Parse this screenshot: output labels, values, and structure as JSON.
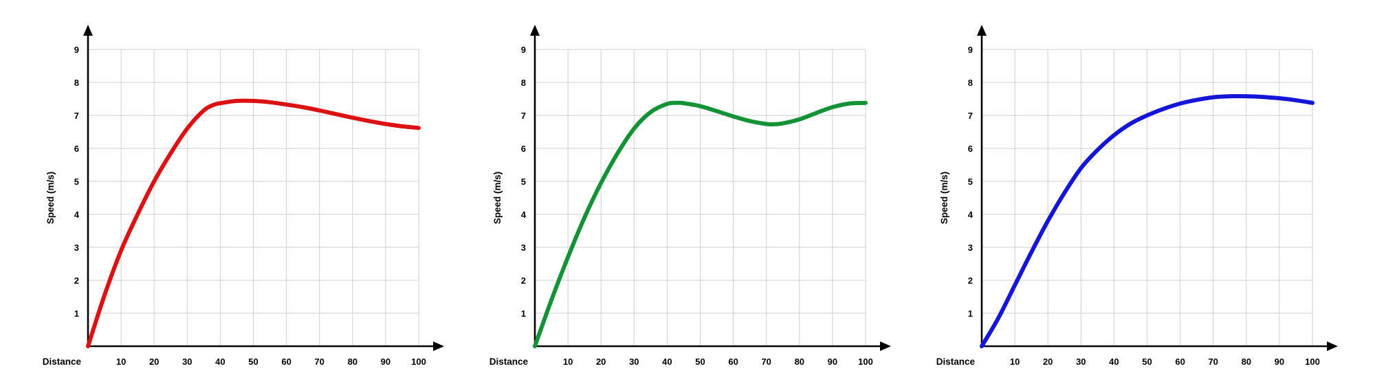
{
  "chart_data": [
    {
      "type": "line",
      "xlabel": "Distance",
      "ylabel": "Speed (m/s)",
      "xlim": [
        0,
        100
      ],
      "ylim": [
        0,
        9
      ],
      "x_ticks": [
        10,
        20,
        30,
        40,
        50,
        60,
        70,
        80,
        90,
        100
      ],
      "y_ticks": [
        1,
        2,
        3,
        4,
        5,
        6,
        7,
        8,
        9
      ],
      "grid": true,
      "series": [
        {
          "color": "#dd1111",
          "x": [
            0,
            5,
            10,
            15,
            20,
            25,
            30,
            35,
            38,
            40,
            45,
            50,
            55,
            60,
            65,
            70,
            75,
            80,
            85,
            90,
            95,
            100
          ],
          "y": [
            0,
            1.55,
            2.9,
            4.0,
            5.0,
            5.85,
            6.6,
            7.15,
            7.32,
            7.37,
            7.44,
            7.44,
            7.4,
            7.33,
            7.25,
            7.15,
            7.04,
            6.93,
            6.83,
            6.74,
            6.67,
            6.62
          ]
        }
      ]
    },
    {
      "type": "line",
      "xlabel": "Distance",
      "ylabel": "Speed (m/s)",
      "xlim": [
        0,
        100
      ],
      "ylim": [
        0,
        9
      ],
      "x_ticks": [
        10,
        20,
        30,
        40,
        50,
        60,
        70,
        80,
        90,
        100
      ],
      "y_ticks": [
        1,
        2,
        3,
        4,
        5,
        6,
        7,
        8,
        9
      ],
      "grid": true,
      "series": [
        {
          "color": "#149236",
          "x": [
            0,
            5,
            10,
            15,
            20,
            25,
            30,
            35,
            40,
            43,
            45,
            50,
            55,
            60,
            65,
            70,
            72,
            75,
            80,
            85,
            90,
            95,
            100
          ],
          "y": [
            0,
            1.4,
            2.7,
            3.9,
            4.95,
            5.85,
            6.6,
            7.1,
            7.35,
            7.38,
            7.37,
            7.28,
            7.13,
            6.97,
            6.83,
            6.74,
            6.73,
            6.76,
            6.88,
            7.07,
            7.25,
            7.36,
            7.38
          ]
        }
      ]
    },
    {
      "type": "line",
      "xlabel": "Distance",
      "ylabel": "Speed (m/s)",
      "xlim": [
        0,
        100
      ],
      "ylim": [
        0,
        9
      ],
      "x_ticks": [
        10,
        20,
        30,
        40,
        50,
        60,
        70,
        80,
        90,
        100
      ],
      "y_ticks": [
        1,
        2,
        3,
        4,
        5,
        6,
        7,
        8,
        9
      ],
      "grid": true,
      "series": [
        {
          "color": "#1515d8",
          "x": [
            0,
            5,
            10,
            15,
            20,
            25,
            30,
            35,
            40,
            45,
            50,
            55,
            60,
            65,
            70,
            75,
            80,
            85,
            90,
            95,
            100
          ],
          "y": [
            0,
            0.85,
            1.85,
            2.85,
            3.8,
            4.65,
            5.4,
            5.95,
            6.4,
            6.75,
            7.0,
            7.2,
            7.36,
            7.47,
            7.55,
            7.58,
            7.58,
            7.56,
            7.52,
            7.46,
            7.38
          ]
        }
      ]
    }
  ]
}
